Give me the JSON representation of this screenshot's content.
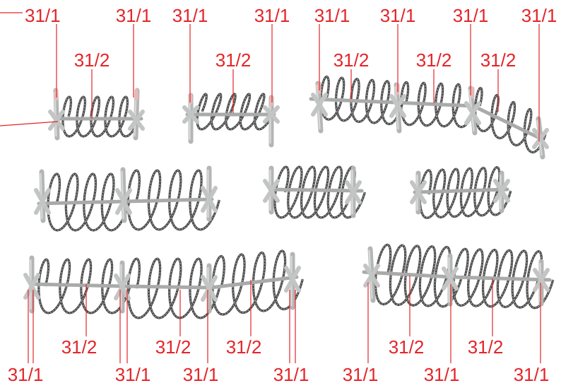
{
  "labels": {
    "anchor": "31/1",
    "coil": "31/2"
  },
  "colors": {
    "label": "#e3262a",
    "rod": "#a9abaa",
    "wire": "#4a4a4a"
  }
}
